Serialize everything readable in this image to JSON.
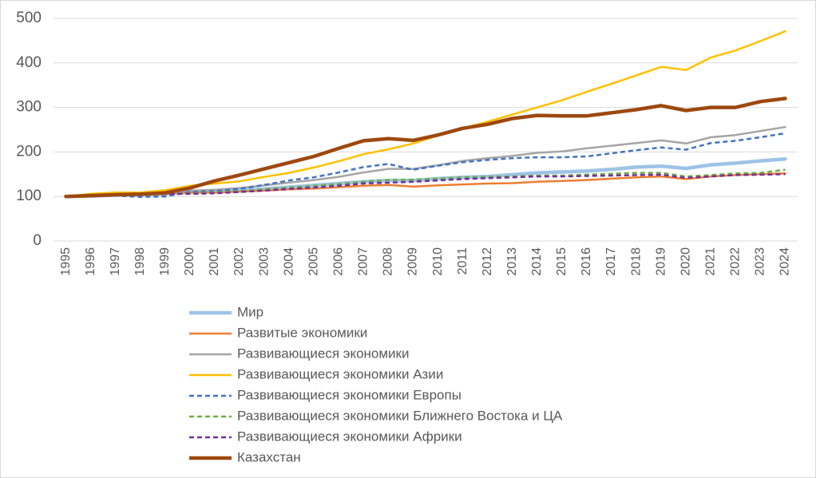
{
  "chart_data": {
    "type": "line",
    "categories": [
      "1995",
      "1996",
      "1997",
      "1998",
      "1999",
      "2000",
      "2001",
      "2002",
      "2003",
      "2004",
      "2005",
      "2006",
      "2007",
      "2008",
      "2009",
      "2010",
      "2011",
      "2012",
      "2013",
      "2014",
      "2015",
      "2016",
      "2017",
      "2018",
      "2019",
      "2020",
      "2021",
      "2022",
      "2023",
      "2024"
    ],
    "ylim": [
      0,
      500
    ],
    "yticks": [
      0,
      100,
      200,
      300,
      400,
      500
    ],
    "grid": true,
    "legend": "bottom",
    "series": [
      {
        "name": "Мир",
        "color": "#9dc3e6",
        "style": "thick",
        "values": [
          100,
          101,
          103,
          104,
          106,
          110,
          111,
          113,
          117,
          121,
          125,
          129,
          133,
          136,
          136,
          140,
          143,
          145,
          149,
          153,
          155,
          157,
          161,
          166,
          168,
          163,
          171,
          175,
          180,
          184
        ]
      },
      {
        "name": "Развитые экономики",
        "color": "#ed7d31",
        "style": "solid",
        "values": [
          100,
          101,
          103,
          104,
          106,
          109,
          109,
          111,
          113,
          116,
          118,
          121,
          124,
          126,
          122,
          125,
          127,
          129,
          130,
          133,
          135,
          137,
          140,
          143,
          145,
          139,
          145,
          148,
          150,
          152
        ]
      },
      {
        "name": "Развивающиеся экономики",
        "color": "#a5a5a5",
        "style": "solid",
        "values": [
          100,
          101,
          104,
          104,
          107,
          113,
          115,
          119,
          125,
          131,
          137,
          144,
          154,
          162,
          162,
          170,
          180,
          186,
          191,
          198,
          201,
          208,
          214,
          220,
          226,
          219,
          233,
          238,
          247,
          256
        ]
      },
      {
        "name": "Развивающиеся экономики Азии",
        "color": "#ffc000",
        "style": "solid",
        "values": [
          100,
          106,
          109,
          109,
          114,
          124,
          129,
          134,
          144,
          153,
          165,
          179,
          195,
          206,
          219,
          237,
          253,
          268,
          284,
          300,
          316,
          335,
          353,
          372,
          391,
          384,
          412,
          428,
          449,
          471
        ]
      },
      {
        "name": "Развивающиеся экономики Европы",
        "color": "#4472c4",
        "style": "dashed",
        "values": [
          100,
          100,
          102,
          99,
          100,
          110,
          112,
          117,
          126,
          136,
          143,
          154,
          166,
          173,
          160,
          169,
          177,
          182,
          186,
          188,
          188,
          190,
          197,
          204,
          210,
          205,
          220,
          225,
          233,
          242
        ]
      },
      {
        "name": "Развивающиеся экономики Ближнего Востока и ЦА",
        "color": "#70ad47",
        "style": "dashed",
        "values": [
          100,
          101,
          103,
          104,
          106,
          107,
          109,
          112,
          116,
          120,
          124,
          128,
          133,
          137,
          138,
          140,
          143,
          144,
          145,
          147,
          147,
          149,
          151,
          153,
          153,
          145,
          148,
          152,
          153,
          160
        ]
      },
      {
        "name": "Развивающиеся экономики Африки",
        "color": "#7030a0",
        "style": "dashed",
        "values": [
          100,
          101,
          103,
          104,
          106,
          106,
          107,
          110,
          113,
          117,
          120,
          124,
          129,
          131,
          133,
          136,
          139,
          141,
          143,
          145,
          145,
          146,
          147,
          148,
          149,
          142,
          145,
          148,
          149,
          150
        ]
      },
      {
        "name": "Казахстан",
        "color": "#9e480e",
        "style": "thick",
        "values": [
          100,
          102,
          104,
          105,
          108,
          119,
          135,
          148,
          162,
          176,
          190,
          208,
          225,
          230,
          226,
          238,
          253,
          262,
          275,
          282,
          281,
          281,
          288,
          295,
          304,
          293,
          300,
          300,
          313,
          320
        ]
      }
    ]
  }
}
